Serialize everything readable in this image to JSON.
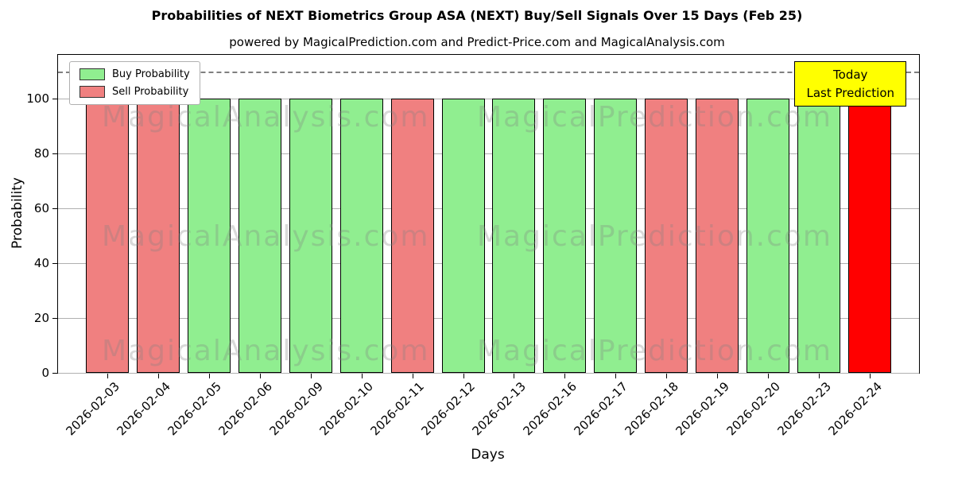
{
  "title": "Probabilities of NEXT Biometrics Group ASA (NEXT) Buy/Sell Signals Over 15 Days (Feb 25)",
  "subtitle": "powered by MagicalPrediction.com and Predict-Price.com and MagicalAnalysis.com",
  "axes": {
    "xlabel": "Days",
    "ylabel": "Probability"
  },
  "legend": {
    "buy_label": "Buy Probability",
    "sell_label": "Sell Probability"
  },
  "annotation": {
    "line1": "Today",
    "line2": "Last Prediction"
  },
  "watermark": {
    "left_text": "MagicalAnalysis.com",
    "right_text": "MagicalPrediction.com"
  },
  "colors": {
    "buy": "#90EE90",
    "sell": "#F08080",
    "today": "#FF0000",
    "annotation_bg": "#FFFF00",
    "grid": "#B0B0B0",
    "dashed_line": "#7F7F7F",
    "edge": "#000000"
  },
  "chart_data": {
    "type": "bar",
    "title": "Probabilities of NEXT Biometrics Group ASA (NEXT) Buy/Sell Signals Over 15 Days (Feb 25)",
    "xlabel": "Days",
    "ylabel": "Probability",
    "ylim": [
      0,
      116
    ],
    "yticks": [
      0,
      20,
      40,
      60,
      80,
      100
    ],
    "grid": true,
    "legend_position": "upper left",
    "dashed_line_y": 110,
    "categories": [
      "2026-02-03",
      "2026-02-04",
      "2026-02-05",
      "2026-02-06",
      "2026-02-09",
      "2026-02-10",
      "2026-02-11",
      "2026-02-12",
      "2026-02-13",
      "2026-02-16",
      "2026-02-17",
      "2026-02-18",
      "2026-02-19",
      "2026-02-20",
      "2026-02-23",
      "2026-02-24"
    ],
    "bars": [
      {
        "date": "2026-02-03",
        "value": 100,
        "kind": "sell"
      },
      {
        "date": "2026-02-04",
        "value": 100,
        "kind": "sell"
      },
      {
        "date": "2026-02-05",
        "value": 100,
        "kind": "buy"
      },
      {
        "date": "2026-02-06",
        "value": 100,
        "kind": "buy"
      },
      {
        "date": "2026-02-09",
        "value": 100,
        "kind": "buy"
      },
      {
        "date": "2026-02-10",
        "value": 100,
        "kind": "buy"
      },
      {
        "date": "2026-02-11",
        "value": 100,
        "kind": "sell"
      },
      {
        "date": "2026-02-12",
        "value": 100,
        "kind": "buy"
      },
      {
        "date": "2026-02-13",
        "value": 100,
        "kind": "buy"
      },
      {
        "date": "2026-02-16",
        "value": 100,
        "kind": "buy"
      },
      {
        "date": "2026-02-17",
        "value": 100,
        "kind": "buy"
      },
      {
        "date": "2026-02-18",
        "value": 100,
        "kind": "sell"
      },
      {
        "date": "2026-02-19",
        "value": 100,
        "kind": "sell"
      },
      {
        "date": "2026-02-20",
        "value": 100,
        "kind": "buy"
      },
      {
        "date": "2026-02-23",
        "value": 100,
        "kind": "buy"
      },
      {
        "date": "2026-02-24",
        "value": 100,
        "kind": "today"
      }
    ],
    "series": [
      {
        "name": "Buy Probability",
        "color": "#90EE90",
        "values": [
          0,
          0,
          100,
          100,
          100,
          100,
          0,
          100,
          100,
          100,
          100,
          0,
          0,
          100,
          100,
          0
        ]
      },
      {
        "name": "Sell Probability",
        "color": "#F08080",
        "values": [
          100,
          100,
          0,
          0,
          0,
          0,
          100,
          0,
          0,
          0,
          0,
          100,
          100,
          0,
          0,
          0
        ]
      },
      {
        "name": "Today Last Prediction",
        "color": "#FF0000",
        "values": [
          0,
          0,
          0,
          0,
          0,
          0,
          0,
          0,
          0,
          0,
          0,
          0,
          0,
          0,
          0,
          100
        ]
      }
    ]
  }
}
